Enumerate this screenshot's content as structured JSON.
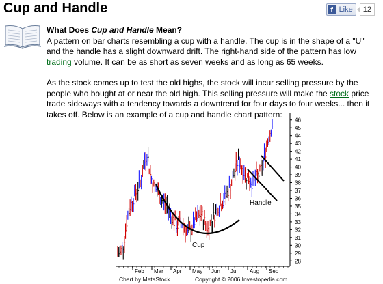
{
  "page": {
    "title": "Cup and Handle"
  },
  "like": {
    "label": "Like",
    "count": "12",
    "icon": "facebook-f-icon",
    "color": "#3b5998"
  },
  "section": {
    "icon": "open-book-icon",
    "heading_prefix": "What Does ",
    "heading_term": "Cup and Handle",
    "heading_suffix": " Mean?",
    "p1_before": "A pattern on bar charts resembling a cup with a handle. The cup is in the shape of a \"U\" and the handle has a slight downward drift. The right-hand side of the pattern has low ",
    "p1_link": "trading",
    "p1_after": " volume. It can be as short as seven weeks and as long as 65 weeks.",
    "p2_before": "As the stock comes up to test the old highs, the stock will incur selling pressure by the people who bought at or near the old high. This selling pressure will make the ",
    "p2_link": "stock",
    "p2_after": " price trade sideways with a tendency towards a downtrend for four days to four weeks... then it takes off. Below is an example of a cup and handle chart pattern:",
    "link_color": "#006e1a"
  },
  "chart_data": {
    "type": "bar",
    "subtype": "ohlc-price-bars",
    "x_tick_labels": [
      "Feb",
      "Mar",
      "Apr",
      "May",
      "Jun",
      "Jul",
      "Aug",
      "Sep"
    ],
    "y_ticks": [
      28,
      29,
      30,
      31,
      32,
      33,
      34,
      35,
      36,
      37,
      38,
      39,
      40,
      41,
      42,
      43,
      44,
      45,
      46
    ],
    "ylim": [
      27.5,
      46.5
    ],
    "y_axis_position": "right",
    "weekly_closes": [
      29,
      30,
      33,
      35,
      36,
      37,
      38,
      40,
      42,
      39,
      37.5,
      37,
      36,
      35.5,
      35,
      34,
      33,
      32.5,
      33,
      32.5,
      31.5,
      32,
      33,
      33.5,
      34,
      33,
      32,
      33,
      34,
      35,
      35.5,
      36,
      37,
      38,
      39.5,
      41,
      40,
      39,
      38.5,
      38,
      38.5,
      39,
      40,
      42,
      44,
      45.5
    ],
    "annotations": [
      "Cup",
      "Handle"
    ],
    "footer_left": "Chart by MetaStock",
    "footer_right": "Copyright © 2006 Investopedia.com",
    "bar_colors": [
      "#d10000",
      "#1a1aff",
      "#000000"
    ]
  }
}
